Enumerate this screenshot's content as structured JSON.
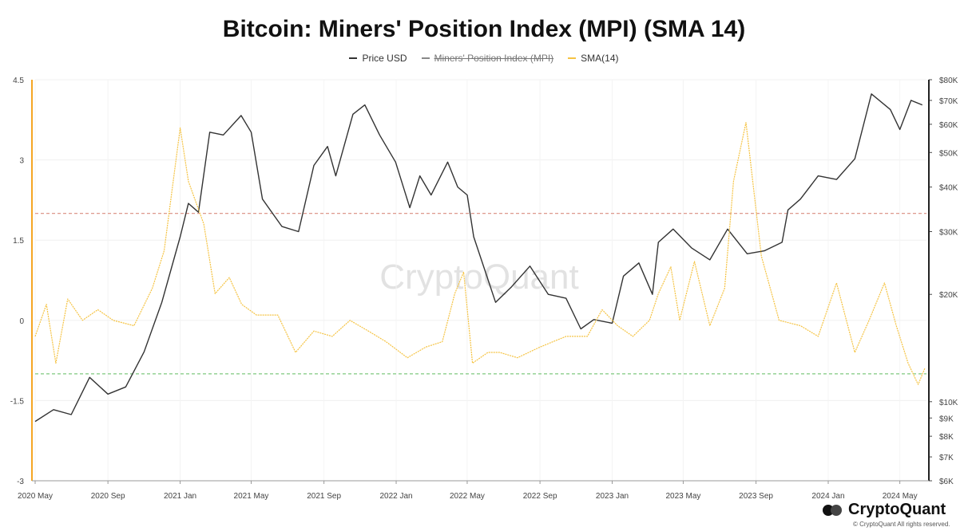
{
  "chart_data": {
    "type": "line",
    "title": "Bitcoin: Miners' Position Index (MPI) (SMA 14)",
    "legend_position": "top-center",
    "grid": true,
    "legend": [
      {
        "name": "Price USD",
        "color": "#333333",
        "enabled": true
      },
      {
        "name": "Miners' Position Index (MPI)",
        "color": "#555555",
        "enabled": false
      },
      {
        "name": "SMA(14)",
        "color": "#f5c342",
        "enabled": true
      }
    ],
    "x_labels": [
      "2020 May",
      "2020 Sep",
      "2021 Jan",
      "2021 May",
      "2021 Sep",
      "2022 Jan",
      "2022 May",
      "2022 Sep",
      "2023 Jan",
      "2023 May",
      "2023 Sep",
      "2024 Jan",
      "2024 May"
    ],
    "x_range": [
      "2020-05-01",
      "2024-06-15"
    ],
    "y_left": {
      "range": [
        -3,
        4.5
      ],
      "ticks": [
        -3,
        -1.5,
        0,
        1.5,
        3,
        4.5
      ],
      "tick_labels": [
        "-3",
        "-1.5",
        "0",
        "1.5",
        "3",
        "4.5"
      ]
    },
    "y_right": {
      "scale": "log",
      "range": [
        6000,
        80000
      ],
      "ticks": [
        6000,
        7000,
        8000,
        9000,
        10000,
        20000,
        30000,
        40000,
        50000,
        60000,
        70000,
        80000
      ],
      "tick_labels": [
        "$6K",
        "$7K",
        "$8K",
        "$9K",
        "$10K",
        "$20K",
        "$30K",
        "$40K",
        "$50K",
        "$60K",
        "$70K",
        "$80K"
      ]
    },
    "reference_lines": [
      {
        "value": 2,
        "color": "#d98c7f",
        "style": "dashed"
      },
      {
        "value": -1,
        "color": "#7fc97f",
        "style": "dashed"
      }
    ],
    "series": [
      {
        "name": "Price USD",
        "axis": "right",
        "color": "#333333",
        "x": [
          "2020-05-01",
          "2020-06-01",
          "2020-07-01",
          "2020-08-01",
          "2020-09-01",
          "2020-10-01",
          "2020-11-01",
          "2020-12-01",
          "2021-01-01",
          "2021-01-15",
          "2021-02-01",
          "2021-02-20",
          "2021-03-15",
          "2021-04-14",
          "2021-05-01",
          "2021-05-20",
          "2021-06-22",
          "2021-07-20",
          "2021-08-15",
          "2021-09-07",
          "2021-09-21",
          "2021-10-20",
          "2021-11-09",
          "2021-12-04",
          "2021-12-31",
          "2022-01-24",
          "2022-02-10",
          "2022-03-01",
          "2022-03-29",
          "2022-04-15",
          "2022-05-01",
          "2022-05-12",
          "2022-06-18",
          "2022-07-15",
          "2022-08-15",
          "2022-09-15",
          "2022-10-15",
          "2022-11-09",
          "2022-12-01",
          "2023-01-01",
          "2023-01-20",
          "2023-02-15",
          "2023-03-10",
          "2023-03-20",
          "2023-04-14",
          "2023-05-15",
          "2023-06-15",
          "2023-07-15",
          "2023-08-17",
          "2023-09-15",
          "2023-10-15",
          "2023-10-25",
          "2023-11-15",
          "2023-12-15",
          "2024-01-15",
          "2024-02-15",
          "2024-03-14",
          "2024-04-15",
          "2024-05-01",
          "2024-05-20",
          "2024-06-08"
        ],
        "values": [
          8800,
          9500,
          9200,
          11700,
          10500,
          11000,
          13800,
          19000,
          29000,
          36000,
          34000,
          57000,
          56000,
          63500,
          57000,
          37000,
          31000,
          30000,
          46000,
          52000,
          43000,
          64000,
          68000,
          56000,
          47000,
          35000,
          43000,
          38000,
          47000,
          40000,
          38000,
          29000,
          19000,
          21000,
          24000,
          20000,
          19500,
          16000,
          17000,
          16600,
          22500,
          24500,
          20000,
          28000,
          30500,
          27000,
          25000,
          30500,
          26000,
          26500,
          28000,
          34500,
          37000,
          43000,
          42000,
          48000,
          73000,
          66000,
          58000,
          70000,
          68000
        ]
      },
      {
        "name": "SMA(14)",
        "axis": "left",
        "color": "#f5c342",
        "x": [
          "2020-05-01",
          "2020-05-20",
          "2020-06-05",
          "2020-06-25",
          "2020-07-20",
          "2020-08-15",
          "2020-09-10",
          "2020-10-15",
          "2020-11-15",
          "2020-12-05",
          "2021-01-01",
          "2021-01-15",
          "2021-02-10",
          "2021-03-01",
          "2021-03-25",
          "2021-04-15",
          "2021-05-10",
          "2021-06-15",
          "2021-07-15",
          "2021-08-15",
          "2021-09-15",
          "2021-10-15",
          "2021-11-15",
          "2021-12-15",
          "2022-01-20",
          "2022-02-20",
          "2022-03-20",
          "2022-04-10",
          "2022-04-25",
          "2022-05-10",
          "2022-06-05",
          "2022-06-25",
          "2022-07-25",
          "2022-09-01",
          "2022-10-15",
          "2022-11-20",
          "2022-12-15",
          "2023-01-10",
          "2023-02-05",
          "2023-03-05",
          "2023-03-20",
          "2023-04-10",
          "2023-04-25",
          "2023-05-20",
          "2023-06-15",
          "2023-07-10",
          "2023-07-25",
          "2023-08-15",
          "2023-09-10",
          "2023-10-10",
          "2023-11-15",
          "2023-12-15",
          "2024-01-15",
          "2024-02-15",
          "2024-03-10",
          "2024-04-05",
          "2024-04-25",
          "2024-05-15",
          "2024-06-01",
          "2024-06-12"
        ],
        "values": [
          -0.3,
          0.3,
          -0.8,
          0.4,
          0.0,
          0.2,
          0.0,
          -0.1,
          0.6,
          1.3,
          3.6,
          2.6,
          1.8,
          0.5,
          0.8,
          0.3,
          0.1,
          0.1,
          -0.6,
          -0.2,
          -0.3,
          0.0,
          -0.2,
          -0.4,
          -0.7,
          -0.5,
          -0.4,
          0.5,
          0.9,
          -0.8,
          -0.6,
          -0.6,
          -0.7,
          -0.5,
          -0.3,
          -0.3,
          0.2,
          -0.1,
          -0.3,
          0.0,
          0.5,
          1.0,
          0.0,
          1.1,
          -0.1,
          0.6,
          2.6,
          3.7,
          1.2,
          0.0,
          -0.1,
          -0.3,
          0.7,
          -0.6,
          0.0,
          0.7,
          -0.1,
          -0.8,
          -1.2,
          -0.9
        ]
      }
    ]
  },
  "watermark": "CryptoQuant",
  "brand": {
    "name": "CryptoQuant",
    "copyright": "© CryptoQuant All rights reserved."
  }
}
